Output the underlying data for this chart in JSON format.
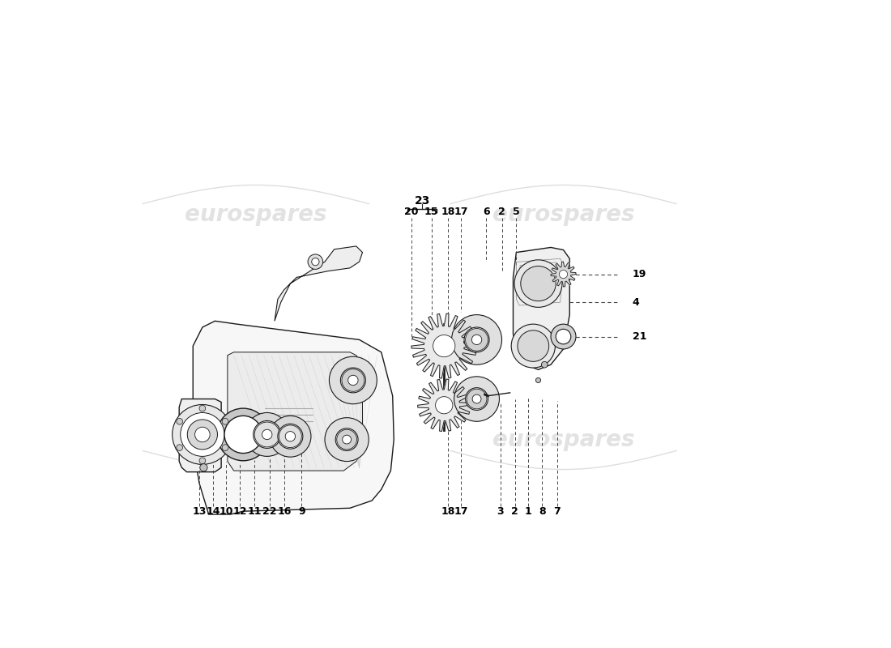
{
  "bg_color": "#ffffff",
  "line_color": "#1a1a1a",
  "label_color": "#000000",
  "dashed_color": "#333333",
  "callout_fontsize": 9,
  "watermark_color": "#d0d0d0",
  "watermark_text": "eurospares"
}
